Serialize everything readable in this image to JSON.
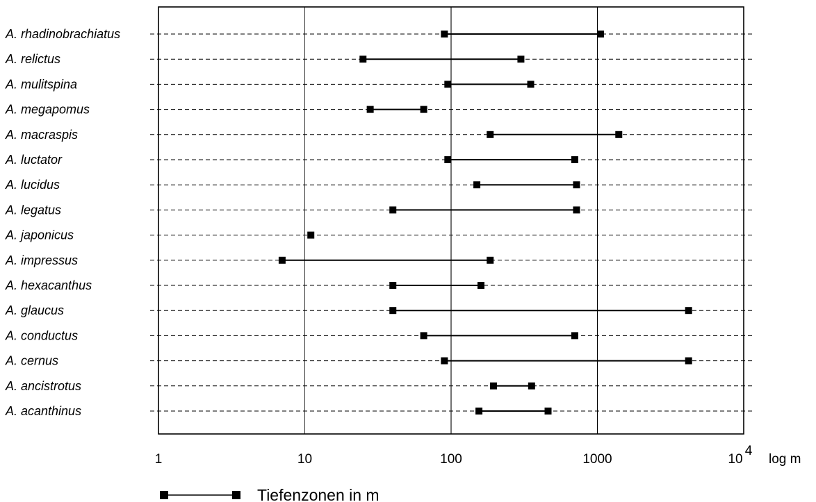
{
  "chart_data": {
    "type": "range",
    "x_scale": "log",
    "xlim": [
      1,
      10000
    ],
    "x_ticks": [
      "1",
      "10",
      "100",
      "1000"
    ],
    "x_tick_last_base": "10",
    "x_tick_last_exp": "4",
    "x_unit_label": "log m",
    "grid": true,
    "legend": {
      "label": "Tiefenzonen in m",
      "placement": "bottom-left"
    },
    "series": [
      {
        "name": "A. rhadinobrachiatus",
        "min": 90,
        "max": 1050
      },
      {
        "name": "A. relictus",
        "min": 25,
        "max": 300
      },
      {
        "name": "A. mulitspina",
        "min": 95,
        "max": 350
      },
      {
        "name": "A. megapomus",
        "min": 28,
        "max": 65
      },
      {
        "name": "A. macraspis",
        "min": 185,
        "max": 1400
      },
      {
        "name": "A. luctator",
        "min": 95,
        "max": 700
      },
      {
        "name": "A. lucidus",
        "min": 150,
        "max": 720
      },
      {
        "name": "A. legatus",
        "min": 40,
        "max": 720
      },
      {
        "name": "A. japonicus",
        "min": 11,
        "max": 11
      },
      {
        "name": "A. impressus",
        "min": 7,
        "max": 185
      },
      {
        "name": "A. hexacanthus",
        "min": 40,
        "max": 160
      },
      {
        "name": "A. glaucus",
        "min": 40,
        "max": 4200
      },
      {
        "name": "A. conductus",
        "min": 65,
        "max": 700
      },
      {
        "name": "A. cernus",
        "min": 90,
        "max": 4200
      },
      {
        "name": "A. ancistrotus",
        "min": 195,
        "max": 355
      },
      {
        "name": "A. acanthinus",
        "min": 155,
        "max": 460
      }
    ]
  }
}
